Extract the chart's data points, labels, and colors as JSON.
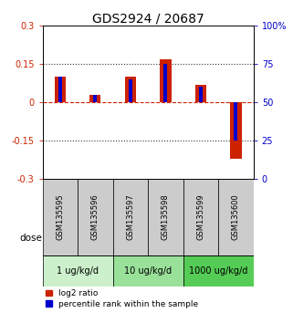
{
  "title": "GDS2924 / 20687",
  "samples": [
    "GSM135595",
    "GSM135596",
    "GSM135597",
    "GSM135598",
    "GSM135599",
    "GSM135600"
  ],
  "log2_ratio": [
    0.1,
    0.03,
    0.1,
    0.17,
    0.07,
    -0.22
  ],
  "percentile": [
    67,
    55,
    65,
    75,
    60,
    25
  ],
  "doses": [
    {
      "label": "1 ug/kg/d",
      "cols": [
        0,
        1
      ],
      "color": "#ccf0cc"
    },
    {
      "label": "10 ug/kg/d",
      "cols": [
        2,
        3
      ],
      "color": "#99e099"
    },
    {
      "label": "1000 ug/kg/d",
      "cols": [
        4,
        5
      ],
      "color": "#55cc55"
    }
  ],
  "red_bar_width": 0.32,
  "blue_bar_width": 0.1,
  "bar_color_red": "#cc2200",
  "bar_color_blue": "#0000cc",
  "ylim_left": [
    -0.3,
    0.3
  ],
  "ylim_right": [
    0,
    100
  ],
  "yticks_left": [
    -0.3,
    -0.15,
    0,
    0.15,
    0.3
  ],
  "yticks_right": [
    0,
    25,
    50,
    75,
    100
  ],
  "ytick_labels_right": [
    "0",
    "25",
    "50",
    "75",
    "100%"
  ],
  "hlines_dotted": [
    0.15,
    -0.15
  ],
  "hline_zero_color": "#cc2200",
  "hline_other_color": "#333333",
  "dose_label": "dose",
  "legend_red": "log2 ratio",
  "legend_blue": "percentile rank within the sample",
  "sample_box_color": "#cccccc",
  "title_fontsize": 10,
  "tick_fontsize": 7,
  "sample_fontsize": 6,
  "dose_fontsize": 7,
  "legend_fontsize": 6.5
}
